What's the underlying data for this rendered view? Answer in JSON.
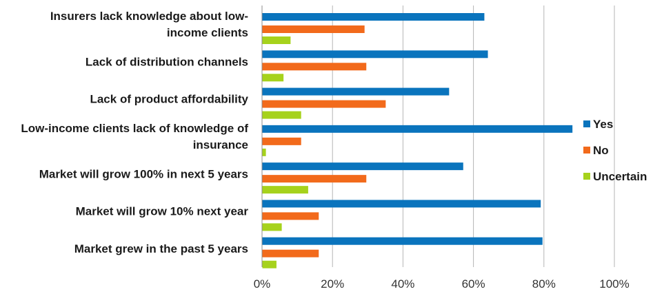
{
  "chart_data": {
    "type": "bar",
    "orientation": "horizontal",
    "categories": [
      [
        "Insurers lack knowledge about low-",
        "income clients"
      ],
      [
        "Lack of distribution channels"
      ],
      [
        "Lack of product affordability"
      ],
      [
        "Low-income clients lack of knowledge of",
        "insurance"
      ],
      [
        "Market will grow 100% in next 5 years"
      ],
      [
        "Market will grow 10% next year"
      ],
      [
        "Market grew in the past 5 years"
      ]
    ],
    "series": [
      {
        "name": "Yes",
        "color": "#0a74bd",
        "values": [
          63,
          64,
          53,
          88,
          57,
          79,
          79.5
        ]
      },
      {
        "name": "No",
        "color": "#f26a1b",
        "values": [
          29,
          29.5,
          35,
          11,
          29.5,
          16,
          16
        ]
      },
      {
        "name": "Uncertain",
        "color": "#a6d21c",
        "values": [
          8,
          6,
          11,
          1,
          13,
          5.5,
          4
        ]
      }
    ],
    "x_ticks": [
      "0%",
      "20%",
      "40%",
      "60%",
      "80%",
      "100%"
    ],
    "xlim": [
      0,
      100
    ],
    "grid": "vertical",
    "legend_position": "right",
    "title": "",
    "xlabel": "",
    "ylabel": ""
  }
}
